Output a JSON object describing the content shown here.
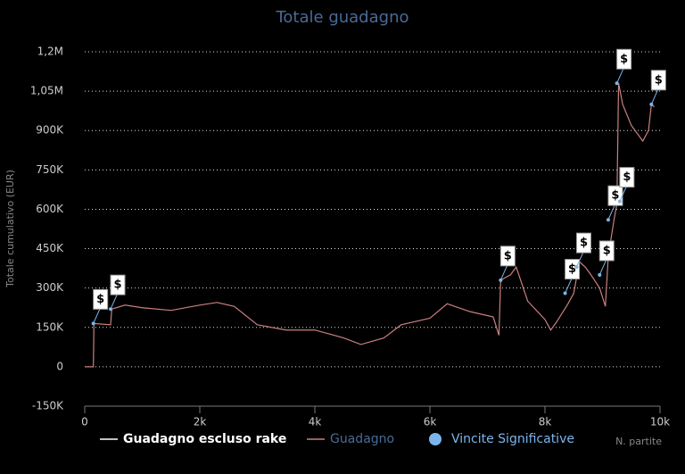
{
  "chart_data": {
    "type": "line",
    "title": "Totale guadagno",
    "y_label": "Totale cumulativo (EUR)",
    "x_label": "N. partite",
    "xlim": [
      0,
      10000
    ],
    "xticks": [
      0,
      {
        "value": 2000,
        "label": "2k"
      },
      {
        "value": 4000,
        "label": "4k"
      },
      {
        "value": 6000,
        "label": "6k"
      },
      {
        "value": 8000,
        "label": "8k"
      },
      {
        "value": 10000,
        "label": "10k"
      }
    ],
    "ylim": [
      -150000,
      1200000
    ],
    "yticks": [
      {
        "value": -150000,
        "label": "-150K"
      },
      0,
      {
        "value": 150000,
        "label": "150K"
      },
      {
        "value": 300000,
        "label": "300K"
      },
      {
        "value": 450000,
        "label": "450K"
      },
      {
        "value": 600000,
        "label": "600K"
      },
      {
        "value": 750000,
        "label": "750K"
      },
      {
        "value": 900000,
        "label": "900K"
      },
      {
        "value": 1050000,
        "label": "1,05M"
      },
      {
        "value": 1200000,
        "label": "1,2M"
      }
    ],
    "grid": true,
    "marker_label": "$",
    "series": [
      {
        "name": "Guadagno escluso rake",
        "color": "#ffffff",
        "x": [],
        "values": []
      },
      {
        "name": "Guadagno",
        "color": "#c98080",
        "x": [
          0,
          150,
          160,
          450,
          470,
          700,
          1000,
          1500,
          2000,
          2300,
          2600,
          3000,
          3500,
          4000,
          4500,
          4800,
          5200,
          5500,
          6000,
          6300,
          6700,
          7100,
          7200,
          7230,
          7400,
          7500,
          7700,
          8000,
          8100,
          8200,
          8400,
          8500,
          8600,
          8700,
          8800,
          8950,
          9050,
          9100,
          9200,
          9250,
          9280,
          9350,
          9500,
          9700,
          9800,
          9850,
          9900
        ],
        "values": [
          0,
          0,
          165000,
          160000,
          220000,
          235000,
          225000,
          215000,
          235000,
          245000,
          230000,
          160000,
          140000,
          140000,
          110000,
          85000,
          110000,
          160000,
          185000,
          240000,
          210000,
          190000,
          120000,
          330000,
          350000,
          380000,
          250000,
          180000,
          140000,
          170000,
          240000,
          280000,
          400000,
          380000,
          350000,
          300000,
          230000,
          420000,
          560000,
          620000,
          1080000,
          1000000,
          920000,
          860000,
          900000,
          1000000,
          990000
        ]
      },
      {
        "name": "Vincite Significative",
        "color": "#7cb5ec",
        "x": [
          150,
          450,
          7230,
          8350,
          8550,
          8950,
          9100,
          9250,
          9300,
          9850
        ],
        "values": [
          165000,
          220000,
          330000,
          280000,
          380000,
          350000,
          560000,
          1080000,
          630000,
          1000000
        ]
      }
    ]
  }
}
